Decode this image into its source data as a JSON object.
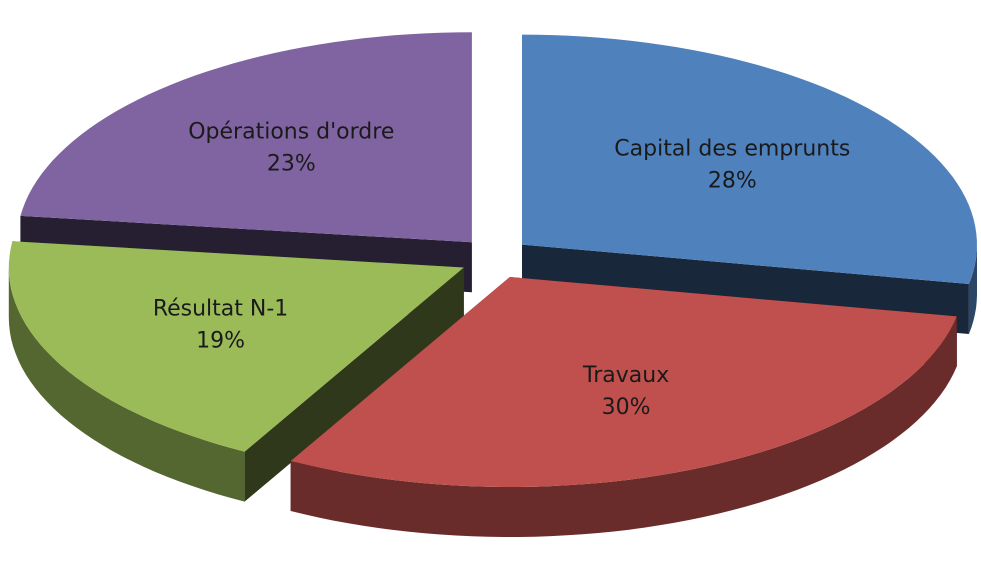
{
  "chart_data": {
    "type": "pie",
    "categories": [
      "Capital des emprunts",
      "Travaux",
      "Résultat N-1",
      "Opérations d'ordre"
    ],
    "values": [
      28,
      30,
      19,
      23
    ],
    "value_labels": [
      "28%",
      "30%",
      "19%",
      "23%"
    ],
    "colors": [
      "#4f81bd",
      "#c0504d",
      "#9bbb59",
      "#8064a2"
    ]
  }
}
